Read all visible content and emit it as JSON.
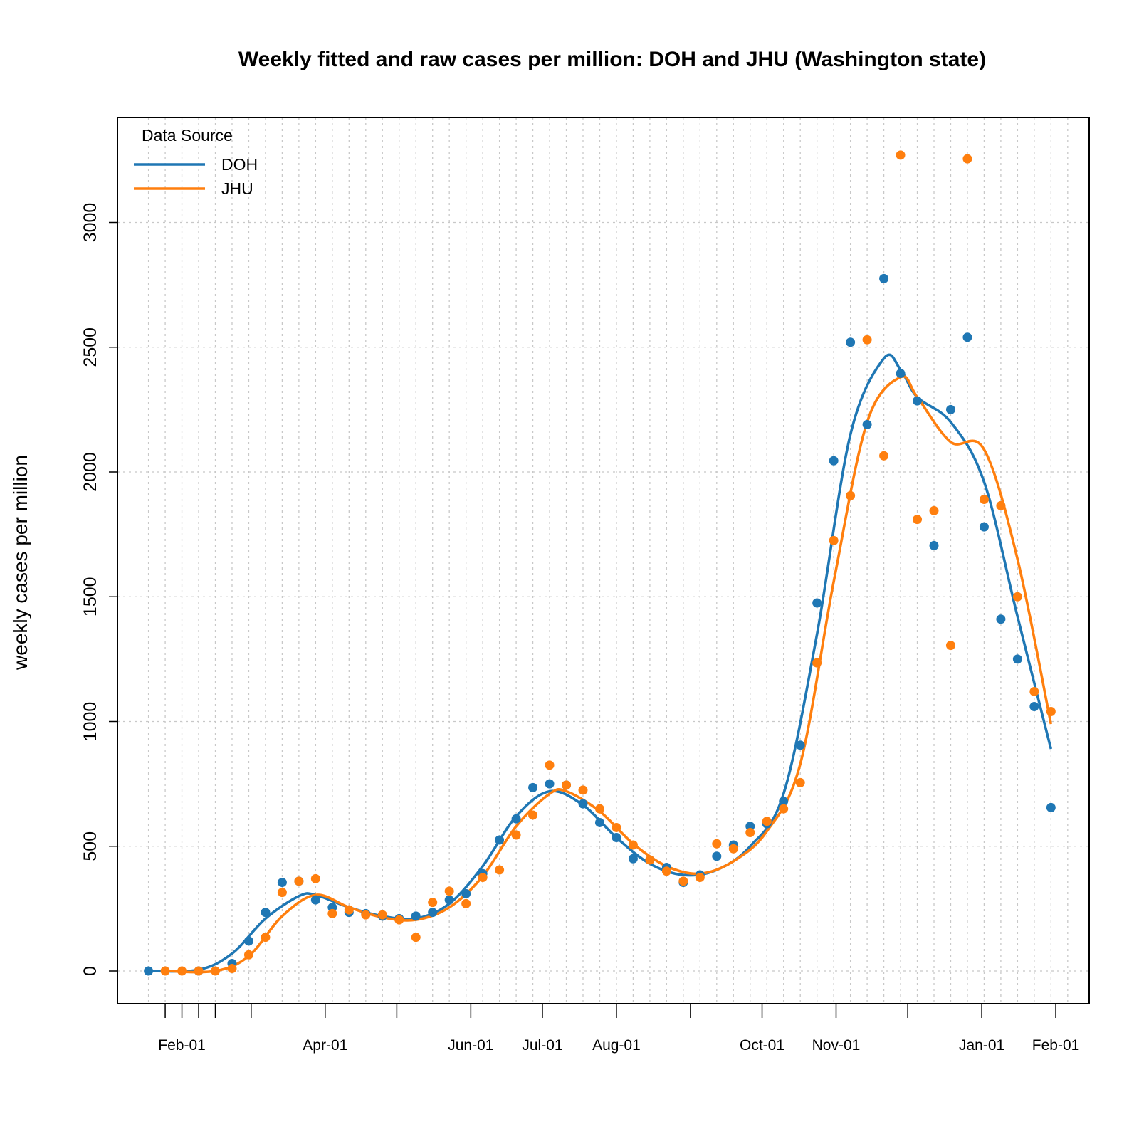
{
  "chart_data": {
    "type": "line",
    "title": "Weekly fitted and raw cases per million: DOH and JHU (Washington state)",
    "xlabel": "",
    "ylabel": "weekly cases per million",
    "y_ticks": [
      0,
      500,
      1000,
      1500,
      2000,
      2500,
      3000
    ],
    "x_ticks": [
      {
        "date": "2020-01-25",
        "label": ""
      },
      {
        "date": "2020-02-01",
        "label": "Feb-01"
      },
      {
        "date": "2020-02-08",
        "label": ""
      },
      {
        "date": "2020-02-15",
        "label": ""
      },
      {
        "date": "2020-03-01",
        "label": ""
      },
      {
        "date": "2020-04-01",
        "label": "Apr-01"
      },
      {
        "date": "2020-05-01",
        "label": ""
      },
      {
        "date": "2020-06-01",
        "label": "Jun-01"
      },
      {
        "date": "2020-07-01",
        "label": "Jul-01"
      },
      {
        "date": "2020-08-01",
        "label": "Aug-01"
      },
      {
        "date": "2020-09-01",
        "label": ""
      },
      {
        "date": "2020-10-01",
        "label": "Oct-01"
      },
      {
        "date": "2020-11-01",
        "label": "Nov-01"
      },
      {
        "date": "2020-12-01",
        "label": ""
      },
      {
        "date": "2021-01-01",
        "label": "Jan-01"
      },
      {
        "date": "2021-02-01",
        "label": "Feb-01"
      }
    ],
    "grid": true,
    "legend": {
      "title": "Data Source",
      "position": "top-left"
    },
    "series": [
      {
        "name": "DOH",
        "color": "#1f77b4",
        "points": [
          [
            "2020-01-18",
            0
          ],
          [
            "2020-02-08",
            0
          ],
          [
            "2020-02-22",
            30
          ],
          [
            "2020-02-29",
            120
          ],
          [
            "2020-03-07",
            235
          ],
          [
            "2020-03-14",
            355
          ],
          [
            "2020-03-21",
            360
          ],
          [
            "2020-03-28",
            285
          ],
          [
            "2020-04-04",
            255
          ],
          [
            "2020-04-11",
            235
          ],
          [
            "2020-04-18",
            230
          ],
          [
            "2020-04-25",
            220
          ],
          [
            "2020-05-02",
            210
          ],
          [
            "2020-05-09",
            220
          ],
          [
            "2020-05-16",
            235
          ],
          [
            "2020-05-23",
            285
          ],
          [
            "2020-05-30",
            310
          ],
          [
            "2020-06-06",
            390
          ],
          [
            "2020-06-13",
            525
          ],
          [
            "2020-06-20",
            610
          ],
          [
            "2020-06-27",
            735
          ],
          [
            "2020-07-04",
            750
          ],
          [
            "2020-07-11",
            745
          ],
          [
            "2020-07-18",
            670
          ],
          [
            "2020-07-25",
            595
          ],
          [
            "2020-08-01",
            535
          ],
          [
            "2020-08-08",
            450
          ],
          [
            "2020-08-15",
            445
          ],
          [
            "2020-08-22",
            415
          ],
          [
            "2020-08-29",
            355
          ],
          [
            "2020-09-05",
            385
          ],
          [
            "2020-09-12",
            460
          ],
          [
            "2020-09-19",
            505
          ],
          [
            "2020-09-26",
            580
          ],
          [
            "2020-10-03",
            590
          ],
          [
            "2020-10-10",
            680
          ],
          [
            "2020-10-17",
            905
          ],
          [
            "2020-10-24",
            1475
          ],
          [
            "2020-10-31",
            2045
          ],
          [
            "2020-11-07",
            2520
          ],
          [
            "2020-11-14",
            2190
          ],
          [
            "2020-11-21",
            2775
          ],
          [
            "2020-11-28",
            2395
          ],
          [
            "2020-12-05",
            2285
          ],
          [
            "2020-12-12",
            1705
          ],
          [
            "2020-12-19",
            2250
          ],
          [
            "2020-12-26",
            2540
          ],
          [
            "2021-01-02",
            1780
          ],
          [
            "2021-01-09",
            1410
          ],
          [
            "2021-01-16",
            1250
          ],
          [
            "2021-01-23",
            1060
          ],
          [
            "2021-01-30",
            655
          ]
        ],
        "fitted": [
          [
            "2020-01-18",
            0
          ],
          [
            "2020-02-08",
            5
          ],
          [
            "2020-02-22",
            70
          ],
          [
            "2020-03-07",
            210
          ],
          [
            "2020-03-21",
            300
          ],
          [
            "2020-03-28",
            305
          ],
          [
            "2020-04-11",
            255
          ],
          [
            "2020-04-25",
            220
          ],
          [
            "2020-05-09",
            210
          ],
          [
            "2020-05-23",
            270
          ],
          [
            "2020-06-06",
            420
          ],
          [
            "2020-06-20",
            620
          ],
          [
            "2020-07-04",
            720
          ],
          [
            "2020-07-18",
            665
          ],
          [
            "2020-08-01",
            535
          ],
          [
            "2020-08-15",
            430
          ],
          [
            "2020-08-29",
            385
          ],
          [
            "2020-09-12",
            405
          ],
          [
            "2020-09-26",
            500
          ],
          [
            "2020-10-10",
            710
          ],
          [
            "2020-10-24",
            1350
          ],
          [
            "2020-11-07",
            2150
          ],
          [
            "2020-11-21",
            2455
          ],
          [
            "2020-11-28",
            2410
          ],
          [
            "2020-12-05",
            2300
          ],
          [
            "2020-12-19",
            2200
          ],
          [
            "2021-01-02",
            1960
          ],
          [
            "2021-01-16",
            1420
          ],
          [
            "2021-01-30",
            890
          ]
        ]
      },
      {
        "name": "JHU",
        "color": "#ff7f0e",
        "points": [
          [
            "2020-01-25",
            0
          ],
          [
            "2020-02-01",
            0
          ],
          [
            "2020-02-08",
            0
          ],
          [
            "2020-02-15",
            0
          ],
          [
            "2020-02-22",
            10
          ],
          [
            "2020-02-29",
            65
          ],
          [
            "2020-03-07",
            135
          ],
          [
            "2020-03-14",
            315
          ],
          [
            "2020-03-21",
            360
          ],
          [
            "2020-03-28",
            370
          ],
          [
            "2020-04-04",
            230
          ],
          [
            "2020-04-11",
            245
          ],
          [
            "2020-04-18",
            225
          ],
          [
            "2020-04-25",
            225
          ],
          [
            "2020-05-02",
            205
          ],
          [
            "2020-05-09",
            135
          ],
          [
            "2020-05-16",
            275
          ],
          [
            "2020-05-23",
            320
          ],
          [
            "2020-05-30",
            270
          ],
          [
            "2020-06-06",
            375
          ],
          [
            "2020-06-13",
            405
          ],
          [
            "2020-06-20",
            545
          ],
          [
            "2020-06-27",
            625
          ],
          [
            "2020-07-04",
            825
          ],
          [
            "2020-07-11",
            745
          ],
          [
            "2020-07-18",
            725
          ],
          [
            "2020-07-25",
            650
          ],
          [
            "2020-08-01",
            575
          ],
          [
            "2020-08-08",
            505
          ],
          [
            "2020-08-15",
            445
          ],
          [
            "2020-08-22",
            400
          ],
          [
            "2020-08-29",
            360
          ],
          [
            "2020-09-05",
            375
          ],
          [
            "2020-09-12",
            510
          ],
          [
            "2020-09-19",
            490
          ],
          [
            "2020-09-26",
            555
          ],
          [
            "2020-10-03",
            600
          ],
          [
            "2020-10-10",
            650
          ],
          [
            "2020-10-17",
            755
          ],
          [
            "2020-10-24",
            1235
          ],
          [
            "2020-10-31",
            1725
          ],
          [
            "2020-11-07",
            1905
          ],
          [
            "2020-11-14",
            2530
          ],
          [
            "2020-11-21",
            2065
          ],
          [
            "2020-11-28",
            3270
          ],
          [
            "2020-12-05",
            1810
          ],
          [
            "2020-12-12",
            1845
          ],
          [
            "2020-12-19",
            1305
          ],
          [
            "2020-12-26",
            3255
          ],
          [
            "2021-01-02",
            1890
          ],
          [
            "2021-01-09",
            1865
          ],
          [
            "2021-01-16",
            1500
          ],
          [
            "2021-01-23",
            1120
          ],
          [
            "2021-01-30",
            1040
          ]
        ],
        "fitted": [
          [
            "2020-01-25",
            0
          ],
          [
            "2020-02-15",
            0
          ],
          [
            "2020-02-29",
            60
          ],
          [
            "2020-03-14",
            220
          ],
          [
            "2020-03-28",
            305
          ],
          [
            "2020-04-11",
            255
          ],
          [
            "2020-04-25",
            215
          ],
          [
            "2020-05-09",
            205
          ],
          [
            "2020-05-23",
            255
          ],
          [
            "2020-06-06",
            380
          ],
          [
            "2020-06-20",
            580
          ],
          [
            "2020-07-04",
            710
          ],
          [
            "2020-07-11",
            720
          ],
          [
            "2020-07-25",
            640
          ],
          [
            "2020-08-08",
            510
          ],
          [
            "2020-08-22",
            420
          ],
          [
            "2020-09-05",
            390
          ],
          [
            "2020-09-19",
            440
          ],
          [
            "2020-10-03",
            560
          ],
          [
            "2020-10-17",
            830
          ],
          [
            "2020-10-31",
            1560
          ],
          [
            "2020-11-14",
            2200
          ],
          [
            "2020-11-28",
            2380
          ],
          [
            "2020-12-05",
            2300
          ],
          [
            "2020-12-19",
            2120
          ],
          [
            "2021-01-02",
            2090
          ],
          [
            "2021-01-16",
            1650
          ],
          [
            "2021-01-30",
            990
          ]
        ]
      }
    ]
  }
}
